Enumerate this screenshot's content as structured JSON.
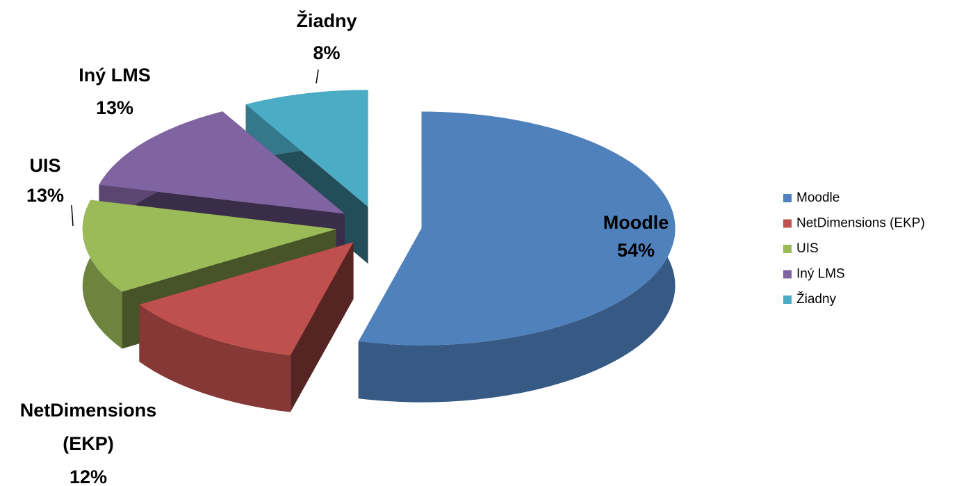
{
  "chart_data": {
    "type": "pie3d",
    "categories": [
      "Moodle",
      "NetDimensions (EKP)",
      "UIS",
      "Iný LMS",
      "Žiadny"
    ],
    "values": [
      54,
      12,
      13,
      13,
      8
    ],
    "value_labels": [
      "54%",
      "12%",
      "13%",
      "13%",
      "8%"
    ],
    "colors": [
      "#4f81bd",
      "#c0504d",
      "#9bbb59",
      "#8064a2",
      "#4bacc6"
    ],
    "legend": "right"
  }
}
